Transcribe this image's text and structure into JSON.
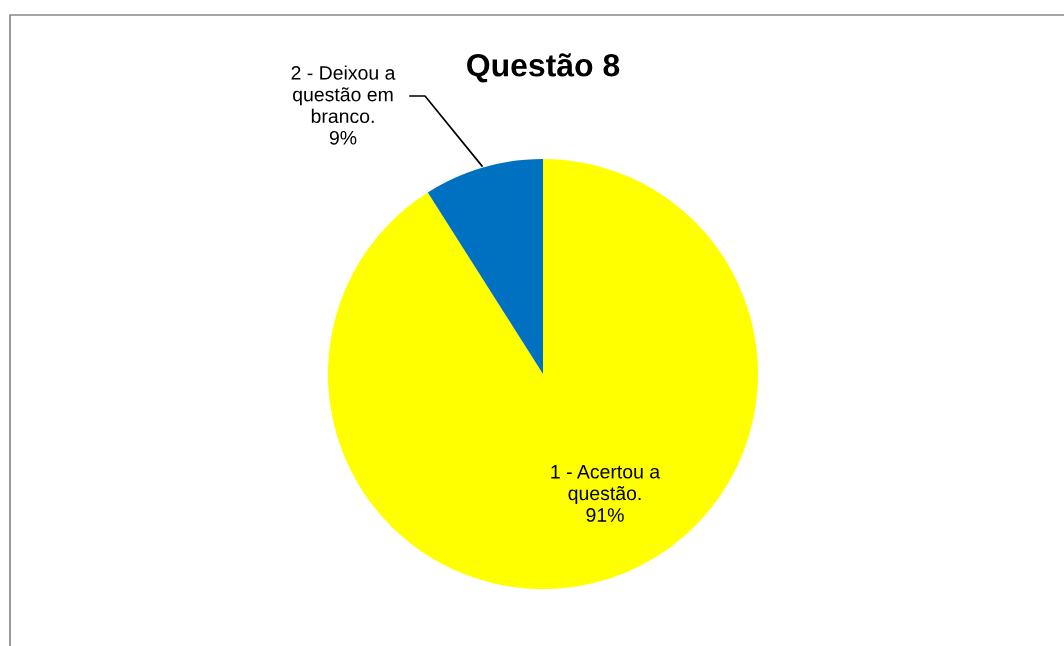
{
  "chart_data": {
    "type": "pie",
    "title": "Questão 8",
    "categories": [
      "1 - Acertou a\nquestão.",
      "2 - Deixou a\nquestão em\nbranco."
    ],
    "values": [
      91,
      9
    ],
    "colors": [
      "#ffff00",
      "#0070c0"
    ],
    "value_labels": [
      "91%",
      "9%"
    ],
    "legend": false
  }
}
